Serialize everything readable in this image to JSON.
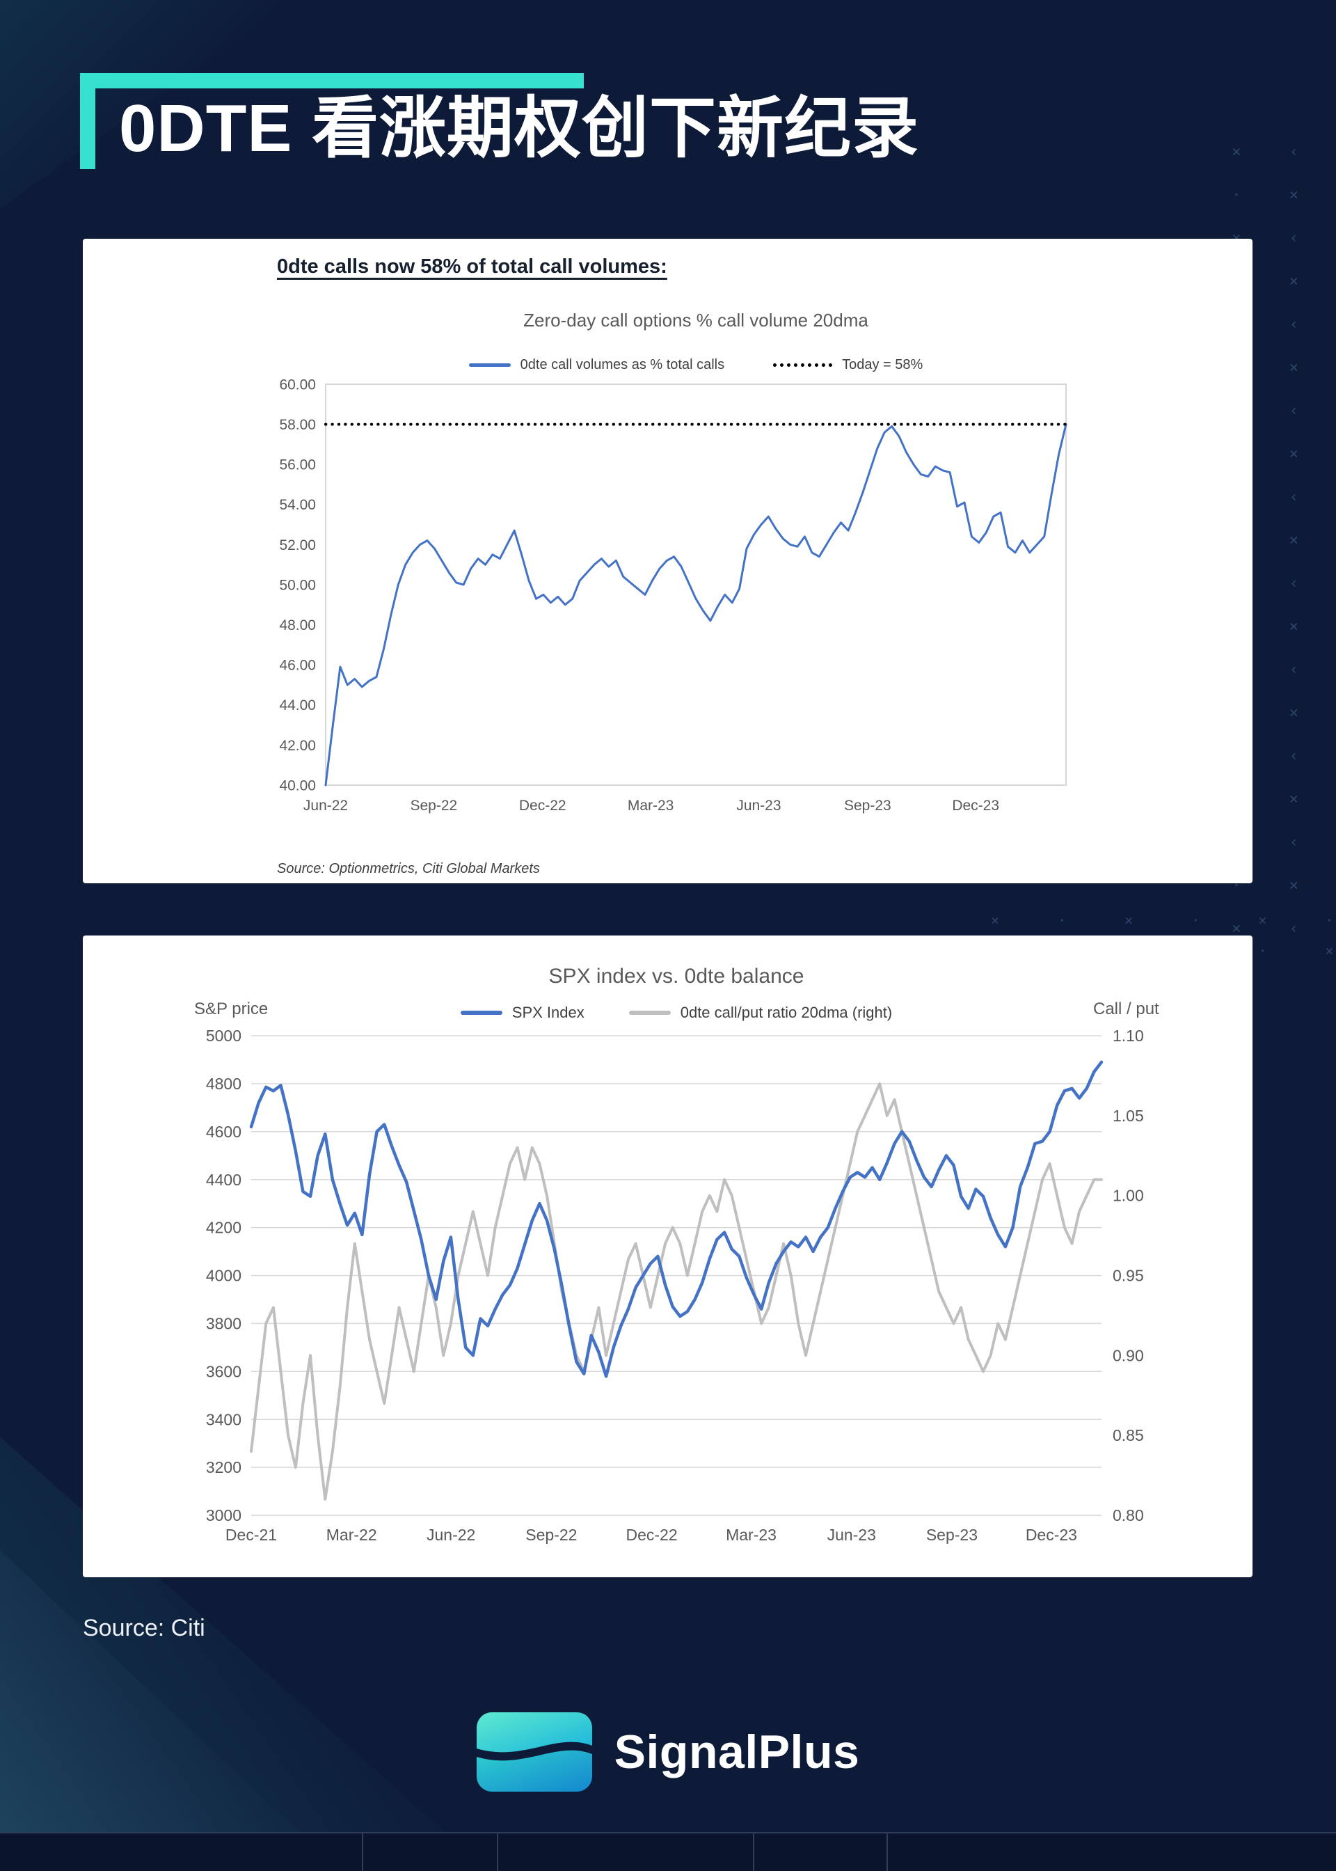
{
  "header": {
    "title": "0DTE 看涨期权创下新纪录"
  },
  "footer": {
    "source": "Source: Citi",
    "brand": "SignalPlus"
  },
  "colors": {
    "background": "#0d1a38",
    "accent_teal": "#36e2cf",
    "chart_blue": "#4472c4",
    "chart_gray": "#bfbfbf",
    "axis_text": "#595959",
    "gridline": "#d9d9d9"
  },
  "decor": {
    "blocks": [
      {
        "id": "pat-right",
        "rows": 19,
        "cols": 2,
        "chars": [
          "×",
          "‹",
          "·",
          "×"
        ]
      },
      {
        "id": "pat-band",
        "rows": 2,
        "cols": 7,
        "chars": [
          "×",
          "·"
        ]
      }
    ]
  },
  "chart_data": [
    {
      "type": "line",
      "heading": "0dte calls now 58% of total call volumes:",
      "title": "Zero-day call options % call volume 20dma",
      "source": "Source: Optionmetrics, Citi Global Markets",
      "legend": [
        {
          "label": "0dte call volumes as % total calls",
          "color": "#4472c4",
          "style": "solid"
        },
        {
          "label": "Today = 58%",
          "color": "#000000",
          "style": "dotted"
        }
      ],
      "ylim": [
        40,
        60
      ],
      "ytick_step": 2,
      "y_decimals": 2,
      "border": true,
      "grid": "none",
      "hline": {
        "value": 58,
        "color": "#000000",
        "style": "dotted"
      },
      "xticks": [
        {
          "f": 0.0,
          "label": "Jun-22"
        },
        {
          "f": 0.146,
          "label": "Sep-22"
        },
        {
          "f": 0.293,
          "label": "Dec-22"
        },
        {
          "f": 0.439,
          "label": "Mar-23"
        },
        {
          "f": 0.585,
          "label": "Jun-23"
        },
        {
          "f": 0.732,
          "label": "Sep-23"
        },
        {
          "f": 0.878,
          "label": "Dec-23"
        }
      ],
      "series": [
        {
          "name": "0dte call volumes as % total calls",
          "axis": "y",
          "color": "#4472c4",
          "width": 3,
          "values": [
            40.0,
            43.0,
            45.9,
            45.0,
            45.3,
            44.9,
            45.2,
            45.4,
            46.8,
            48.5,
            50.0,
            51.0,
            51.6,
            52.0,
            52.2,
            51.8,
            51.2,
            50.6,
            50.1,
            50.0,
            50.8,
            51.3,
            51.0,
            51.5,
            51.3,
            52.0,
            52.7,
            51.5,
            50.2,
            49.3,
            49.5,
            49.1,
            49.4,
            49.0,
            49.3,
            50.2,
            50.6,
            51.0,
            51.3,
            50.9,
            51.2,
            50.4,
            50.1,
            49.8,
            49.5,
            50.2,
            50.8,
            51.2,
            51.4,
            50.9,
            50.1,
            49.3,
            48.7,
            48.2,
            48.9,
            49.5,
            49.1,
            49.8,
            51.8,
            52.5,
            53.0,
            53.4,
            52.8,
            52.3,
            52.0,
            51.9,
            52.4,
            51.6,
            51.4,
            52.0,
            52.6,
            53.1,
            52.7,
            53.6,
            54.6,
            55.7,
            56.8,
            57.6,
            57.9,
            57.4,
            56.6,
            56.0,
            55.5,
            55.4,
            55.9,
            55.7,
            55.6,
            53.9,
            54.1,
            52.4,
            52.1,
            52.6,
            53.4,
            53.6,
            51.9,
            51.6,
            52.2,
            51.6,
            52.0,
            52.4,
            54.5,
            56.5,
            58.0
          ]
        }
      ]
    },
    {
      "type": "line",
      "title": "SPX index vs. 0dte balance",
      "ylabel_left": "S&P price",
      "ylabel_right": "Call / put",
      "legend": [
        {
          "label": "SPX Index",
          "color": "#4472c4",
          "style": "solid"
        },
        {
          "label": "0dte call/put ratio 20dma (right)",
          "color": "#bfbfbf",
          "style": "solid"
        }
      ],
      "ylim": [
        3000,
        5000
      ],
      "ytick_step": 200,
      "y_decimals": 0,
      "y2lim": [
        0.8,
        1.1
      ],
      "y2tick_step": 0.05,
      "y2_decimals": 2,
      "border": false,
      "grid": "horizontal",
      "xticks": [
        {
          "f": 0.0,
          "label": "Dec-21"
        },
        {
          "f": 0.118,
          "label": "Mar-22"
        },
        {
          "f": 0.235,
          "label": "Jun-22"
        },
        {
          "f": 0.353,
          "label": "Sep-22"
        },
        {
          "f": 0.471,
          "label": "Dec-22"
        },
        {
          "f": 0.588,
          "label": "Mar-23"
        },
        {
          "f": 0.706,
          "label": "Jun-23"
        },
        {
          "f": 0.824,
          "label": "Sep-23"
        },
        {
          "f": 0.941,
          "label": "Dec-23"
        }
      ],
      "series": [
        {
          "name": "0dte call/put ratio 20dma (right)",
          "axis": "y2",
          "color": "#bfbfbf",
          "width": 4,
          "values": [
            0.84,
            0.88,
            0.92,
            0.93,
            0.89,
            0.85,
            0.83,
            0.87,
            0.9,
            0.85,
            0.81,
            0.84,
            0.88,
            0.93,
            0.97,
            0.94,
            0.91,
            0.89,
            0.87,
            0.9,
            0.93,
            0.91,
            0.89,
            0.92,
            0.95,
            0.93,
            0.9,
            0.92,
            0.95,
            0.97,
            0.99,
            0.97,
            0.95,
            0.98,
            1.0,
            1.02,
            1.03,
            1.01,
            1.03,
            1.02,
            1.0,
            0.97,
            0.94,
            0.92,
            0.9,
            0.89,
            0.91,
            0.93,
            0.9,
            0.92,
            0.94,
            0.96,
            0.97,
            0.95,
            0.93,
            0.95,
            0.97,
            0.98,
            0.97,
            0.95,
            0.97,
            0.99,
            1.0,
            0.99,
            1.01,
            1.0,
            0.98,
            0.96,
            0.94,
            0.92,
            0.93,
            0.95,
            0.97,
            0.95,
            0.92,
            0.9,
            0.92,
            0.94,
            0.96,
            0.98,
            1.0,
            1.02,
            1.04,
            1.05,
            1.06,
            1.07,
            1.05,
            1.06,
            1.04,
            1.02,
            1.0,
            0.98,
            0.96,
            0.94,
            0.93,
            0.92,
            0.93,
            0.91,
            0.9,
            0.89,
            0.9,
            0.92,
            0.91,
            0.93,
            0.95,
            0.97,
            0.99,
            1.01,
            1.02,
            1.0,
            0.98,
            0.97,
            0.99,
            1.0,
            1.01,
            1.01
          ]
        },
        {
          "name": "SPX Index",
          "axis": "y",
          "color": "#4472c4",
          "width": 4.5,
          "values": [
            4620,
            4720,
            4786,
            4770,
            4793,
            4670,
            4520,
            4350,
            4330,
            4500,
            4590,
            4400,
            4300,
            4210,
            4260,
            4170,
            4420,
            4600,
            4630,
            4540,
            4460,
            4390,
            4270,
            4150,
            4000,
            3900,
            4060,
            4160,
            3900,
            3700,
            3667,
            3820,
            3790,
            3860,
            3920,
            3960,
            4030,
            4130,
            4230,
            4300,
            4230,
            4110,
            3960,
            3790,
            3640,
            3590,
            3750,
            3680,
            3580,
            3700,
            3790,
            3860,
            3950,
            4000,
            4050,
            4080,
            3960,
            3870,
            3830,
            3850,
            3900,
            3970,
            4070,
            4150,
            4180,
            4110,
            4080,
            3990,
            3920,
            3860,
            3970,
            4050,
            4100,
            4140,
            4120,
            4160,
            4100,
            4160,
            4200,
            4280,
            4350,
            4410,
            4430,
            4410,
            4450,
            4400,
            4470,
            4550,
            4600,
            4560,
            4480,
            4410,
            4370,
            4440,
            4500,
            4460,
            4330,
            4280,
            4360,
            4330,
            4240,
            4170,
            4120,
            4200,
            4370,
            4450,
            4550,
            4560,
            4600,
            4710,
            4770,
            4780,
            4740,
            4780,
            4850,
            4890
          ]
        }
      ]
    }
  ]
}
